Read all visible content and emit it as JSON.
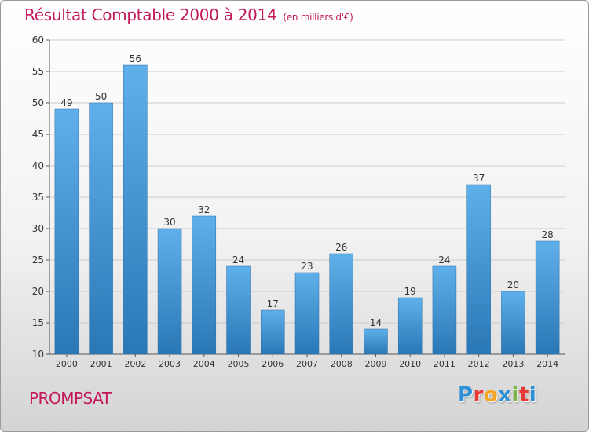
{
  "header": {
    "title": "Résultat Comptable 2000 à 2014",
    "subtitle": "(en milliers d'€)"
  },
  "place_name": "PROMPSAT",
  "logo": {
    "letters": [
      "P",
      "r",
      "o",
      "x",
      "i",
      "t",
      "i"
    ],
    "colors": [
      "#2e8fd6",
      "#e53935",
      "#f5a623",
      "#2e8fd6",
      "#7cb342",
      "#e53935",
      "#2e8fd6"
    ]
  },
  "colors": {
    "title": "#c2185b",
    "bar_top": "#5fb0ea",
    "bar_bottom": "#2a77b5",
    "grid": "#cccccc"
  },
  "chart_data": {
    "type": "bar",
    "title": "Résultat Comptable 2000 à 2014",
    "subtitle": "(en milliers d'€)",
    "categories": [
      "2000",
      "2001",
      "2002",
      "2003",
      "2004",
      "2005",
      "2006",
      "2007",
      "2008",
      "2009",
      "2010",
      "2011",
      "2012",
      "2013",
      "2014"
    ],
    "values": [
      49,
      50,
      56,
      30,
      32,
      24,
      17,
      23,
      26,
      14,
      19,
      24,
      37,
      20,
      28
    ],
    "ylim": [
      10,
      60
    ],
    "yticks": [
      10,
      15,
      20,
      25,
      30,
      35,
      40,
      45,
      50,
      55,
      60
    ],
    "grid": true,
    "xlabel": "",
    "ylabel": ""
  }
}
